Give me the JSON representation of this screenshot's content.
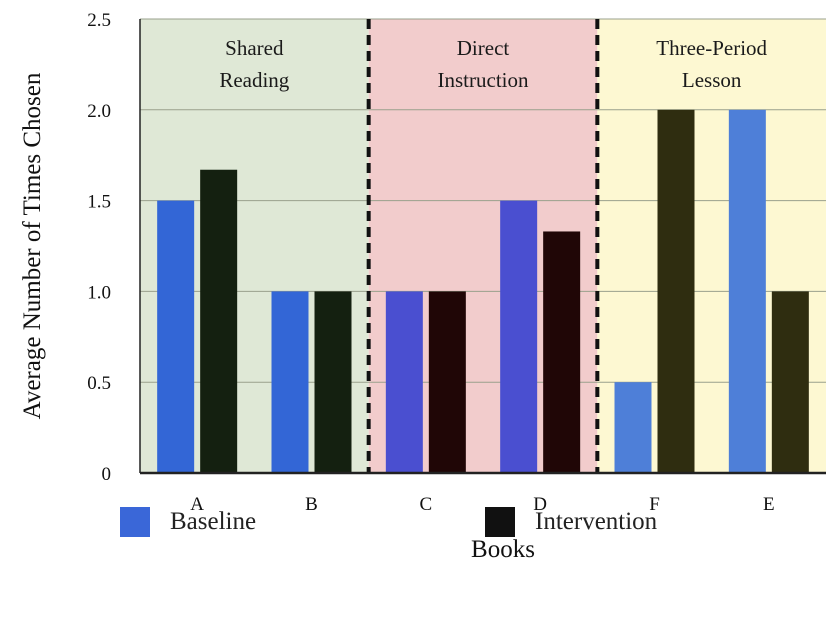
{
  "chart_data": {
    "type": "bar",
    "title": "",
    "xlabel": "Books",
    "ylabel": "Average Number of Times Chosen",
    "ylim": [
      0,
      2.5
    ],
    "yticks": [
      "0",
      "0.5",
      "1.0",
      "1.5",
      "2.0",
      "2.5"
    ],
    "categories": [
      "A",
      "B",
      "C",
      "D",
      "F",
      "E"
    ],
    "series": [
      {
        "name": "Baseline",
        "values": [
          1.5,
          1.0,
          1.0,
          1.5,
          0.5,
          2.0
        ]
      },
      {
        "name": "Intervention",
        "values": [
          1.67,
          1.0,
          1.0,
          1.33,
          2.0,
          1.0
        ]
      }
    ],
    "regions": [
      {
        "lines": [
          "Shared",
          "Reading"
        ],
        "categories": [
          "A",
          "B"
        ],
        "color": "#dfe8d6"
      },
      {
        "lines": [
          "Direct",
          "Instruction"
        ],
        "categories": [
          "C",
          "D"
        ],
        "color": "#f2cccc"
      },
      {
        "lines": [
          "Three-Period",
          "Lesson"
        ],
        "categories": [
          "F",
          "E"
        ],
        "color": "#fdf8d2"
      }
    ],
    "bar_colors": [
      [
        "#3366d6",
        "#142010"
      ],
      [
        "#3366d6",
        "#142010"
      ],
      [
        "#4a4fd0",
        "#200606"
      ],
      [
        "#4a4fd0",
        "#200606"
      ],
      [
        "#4e7fd8",
        "#2f2d10"
      ],
      [
        "#4e7fd8",
        "#2f2d10"
      ]
    ],
    "grid": true,
    "legend_position": "bottom",
    "legend": [
      {
        "label": "Baseline",
        "color": "#3a67d8"
      },
      {
        "label": "Intervention",
        "color": "#111111"
      }
    ]
  }
}
